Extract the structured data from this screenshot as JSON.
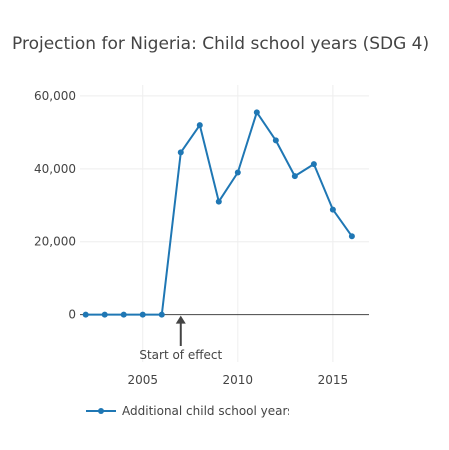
{
  "chart_data": {
    "type": "line",
    "title": "Projection for Nigeria: Child school years (SDG 4)",
    "xlabel": "",
    "ylabel": "",
    "x": [
      2002,
      2003,
      2004,
      2005,
      2006,
      2007,
      2008,
      2009,
      2010,
      2011,
      2012,
      2013,
      2014,
      2015,
      2016
    ],
    "series": [
      {
        "name": "Additional child school years",
        "values": [
          0,
          0,
          0,
          0,
          0,
          44500,
          52000,
          31000,
          39000,
          55500,
          47800,
          38000,
          41300,
          28800,
          21500
        ],
        "color": "#1f77b4"
      }
    ],
    "xlim": [
      2001.7,
      2016.9
    ],
    "ylim": [
      -13000,
      63000
    ],
    "xticks": [
      2005,
      2010,
      2015
    ],
    "xtick_labels": [
      "2005",
      "2010",
      "2015"
    ],
    "yticks": [
      0,
      20000,
      40000,
      60000
    ],
    "ytick_labels": [
      "0",
      "20,000",
      "40,000",
      "60,000"
    ],
    "grid": true,
    "legend_position": "bottom-left",
    "annotations": [
      {
        "text": "Start of effect",
        "x": 2007,
        "y": 0,
        "arrow": true
      }
    ]
  }
}
